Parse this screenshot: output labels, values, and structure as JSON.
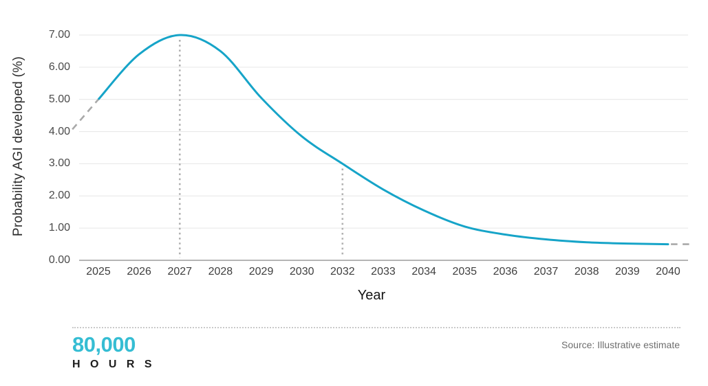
{
  "chart_data": {
    "type": "line",
    "title": "",
    "xlabel": "Year",
    "ylabel": "Probability AGI developed (%)",
    "ylim": [
      0,
      7
    ],
    "grid": "horizontal",
    "legend": "none",
    "y_tick_labels": [
      "0.00",
      "1.00",
      "2.00",
      "3.00",
      "4.00",
      "5.00",
      "6.00",
      "7.00"
    ],
    "x_tick_labels": [
      "2025",
      "2026",
      "2027",
      "2028",
      "2029",
      "2030",
      "2032",
      "2033",
      "2034",
      "2035",
      "2036",
      "2037",
      "2038",
      "2039",
      "2040"
    ],
    "series": [
      {
        "name": "probability-agi-curve",
        "style": "solid-smooth",
        "color": "#16a4c8",
        "x_index": [
          0,
          1,
          2,
          3,
          4,
          5,
          6,
          7,
          8,
          9,
          10,
          11,
          12,
          13,
          14
        ],
        "values": [
          5.0,
          6.4,
          7.0,
          6.5,
          5.05,
          3.85,
          3.0,
          2.2,
          1.55,
          1.05,
          0.8,
          0.65,
          0.56,
          0.52,
          0.5
        ]
      },
      {
        "name": "pre-2025-extrapolation",
        "style": "dashed",
        "color": "#a9a9a9",
        "x_index": [
          -0.64,
          0
        ],
        "values": [
          4.07,
          5.0
        ]
      },
      {
        "name": "post-2040-extrapolation",
        "style": "dashed",
        "color": "#a9a9a9",
        "x_index": [
          14.07,
          14.53
        ],
        "values": [
          0.5,
          0.5
        ]
      }
    ],
    "annotations": [
      {
        "type": "vline-dotted",
        "x_label": "2027",
        "x_index": 2,
        "value": 7.0
      },
      {
        "type": "vline-dotted",
        "x_label": "2032",
        "x_index": 6,
        "value": 3.0
      }
    ]
  },
  "footer": {
    "logo_line1": "80,000",
    "logo_line2": "H O U R S",
    "source": "Source: Illustrative estimate"
  },
  "colors": {
    "curve": "#16a4c8",
    "logo_teal": "#35bdd3",
    "dashed_gray": "#a9a9a9",
    "dotted_guide": "#b2b2b2",
    "gridline": "#e6e6e6",
    "axis": "#9b9b9b"
  }
}
